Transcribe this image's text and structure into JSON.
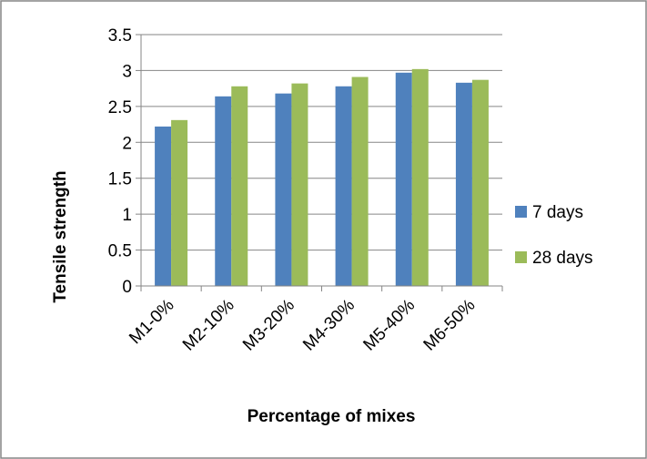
{
  "chart_data": {
    "type": "bar",
    "title": "",
    "xlabel": "Percentage of mixes",
    "ylabel": "Tensile strength",
    "categories": [
      "M1-0%",
      "M2-10%",
      "M3-20%",
      "M4-30%",
      "M5-40%",
      "M6-50%"
    ],
    "series": [
      {
        "name": "7 days",
        "color": "#4F81BD",
        "values": [
          2.22,
          2.64,
          2.68,
          2.78,
          2.97,
          2.83
        ]
      },
      {
        "name": "28 days",
        "color": "#9BBB59",
        "values": [
          2.31,
          2.78,
          2.82,
          2.91,
          3.02,
          2.87
        ]
      }
    ],
    "ylim": [
      0,
      3.5
    ],
    "yticks": [
      "0",
      "0.5",
      "1",
      "1.5",
      "2",
      "2.5",
      "3",
      "3.5"
    ],
    "grid": true,
    "legend_position": "right"
  }
}
